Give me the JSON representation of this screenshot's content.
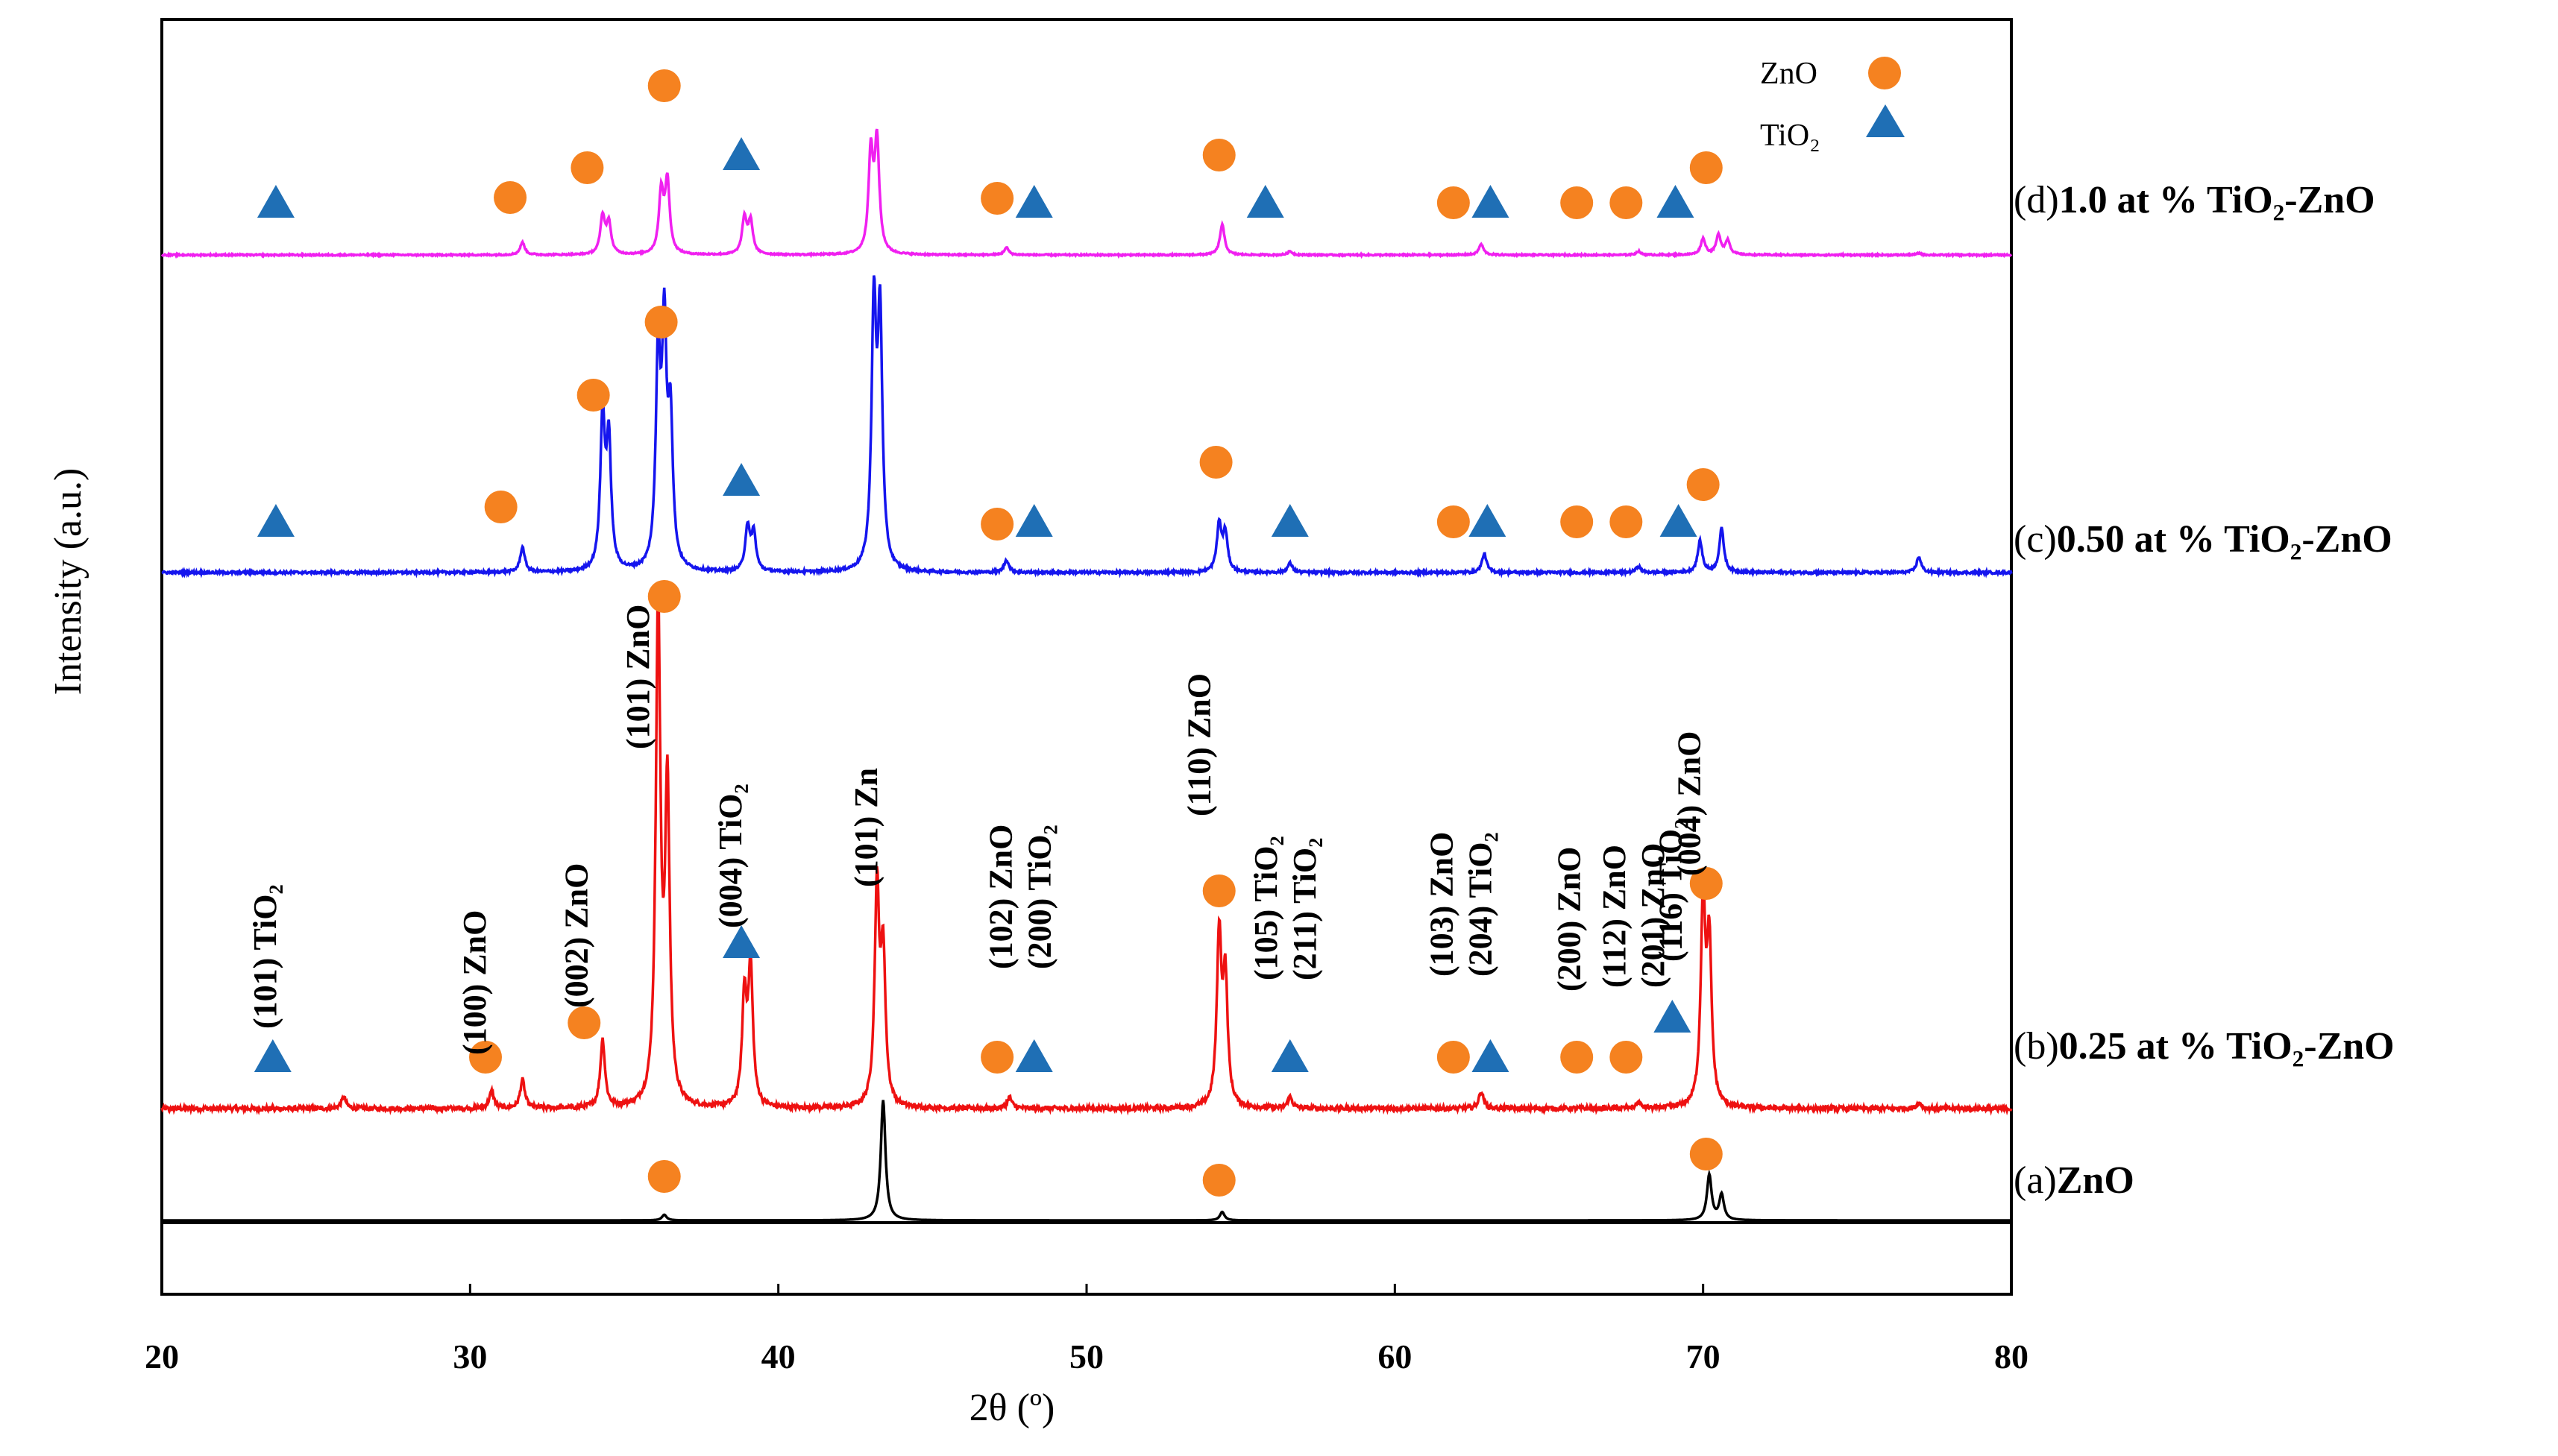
{
  "chart_data": {
    "type": "line",
    "xlabel": "2θ (º)",
    "ylabel": "Intensity (a.u.)",
    "xlim": [
      20,
      80
    ],
    "x_ticks": [
      "20",
      "30",
      "40",
      "50",
      "60",
      "70",
      "80"
    ],
    "grid": false,
    "legend": {
      "placement": "top-right",
      "entries": [
        {
          "label": "ZnO",
          "marker": "circle",
          "color": "#F58220"
        },
        {
          "label": "TiO₂",
          "marker": "triangle",
          "color": "#1F6FB5"
        }
      ]
    },
    "series": [
      {
        "id": "a",
        "prefix": "(a)",
        "name": "ZnO",
        "color": "#000000",
        "peaks": [
          [
            36.3,
            0.04
          ],
          [
            43.4,
            0.85
          ],
          [
            54.4,
            0.06
          ],
          [
            70.2,
            0.32
          ],
          [
            70.6,
            0.18
          ]
        ],
        "markers": [
          {
            "x": 36.3,
            "kind": "ZnO"
          },
          {
            "x": 54.3,
            "kind": "ZnO"
          },
          {
            "x": 70.1,
            "kind": "ZnO"
          }
        ]
      },
      {
        "id": "b",
        "prefix": "(b)",
        "name": "0.25 at % TiO₂-ZnO",
        "color": "#EE1111",
        "peaks": [
          [
            25.9,
            0.02
          ],
          [
            30.7,
            0.03
          ],
          [
            31.7,
            0.05
          ],
          [
            34.3,
            0.12
          ],
          [
            36.1,
            0.88
          ],
          [
            36.4,
            0.55
          ],
          [
            38.9,
            0.19
          ],
          [
            39.1,
            0.24
          ],
          [
            43.2,
            0.38
          ],
          [
            43.4,
            0.26
          ],
          [
            47.5,
            0.02
          ],
          [
            54.3,
            0.3
          ],
          [
            54.5,
            0.22
          ],
          [
            56.6,
            0.02
          ],
          [
            62.8,
            0.03
          ],
          [
            67.9,
            0.01
          ],
          [
            70.0,
            0.36
          ],
          [
            70.2,
            0.28
          ],
          [
            77.0,
            0.01
          ]
        ],
        "markers": [
          {
            "x": 23.6,
            "kind": "TiO2"
          },
          {
            "x": 30.5,
            "kind": "ZnO"
          },
          {
            "x": 33.7,
            "kind": "ZnO"
          },
          {
            "x": 36.3,
            "kind": "ZnO"
          },
          {
            "x": 38.8,
            "kind": "TiO2"
          },
          {
            "x": 47.1,
            "kind": "ZnO"
          },
          {
            "x": 48.3,
            "kind": "TiO2"
          },
          {
            "x": 54.3,
            "kind": "ZnO"
          },
          {
            "x": 56.6,
            "kind": "TiO2"
          },
          {
            "x": 61.9,
            "kind": "ZnO"
          },
          {
            "x": 63.1,
            "kind": "TiO2"
          },
          {
            "x": 65.9,
            "kind": "ZnO"
          },
          {
            "x": 67.5,
            "kind": "ZnO"
          },
          {
            "x": 69.0,
            "kind": "TiO2"
          },
          {
            "x": 70.1,
            "kind": "ZnO"
          }
        ],
        "peak_labels": [
          {
            "x": 23.7,
            "lines": [
              "(101) TiO₂"
            ]
          },
          {
            "x": 30.5,
            "lines": [
              "(100) ZnO"
            ]
          },
          {
            "x": 33.8,
            "lines": [
              "(002) ZnO"
            ]
          },
          {
            "x": 35.8,
            "lines": [
              "(101) ZnO"
            ]
          },
          {
            "x": 38.8,
            "lines": [
              "(004) TiO₂"
            ]
          },
          {
            "x": 43.2,
            "lines": [
              "(101) Zn"
            ]
          },
          {
            "x": 48.2,
            "lines": [
              "(102) ZnO",
              "(200) TiO₂"
            ]
          },
          {
            "x": 54.0,
            "lines": [
              "(110) ZnO"
            ]
          },
          {
            "x": 56.8,
            "lines": [
              "(105) TiO₂",
              "(211) TiO₂"
            ]
          },
          {
            "x": 62.5,
            "lines": [
              "(103) ZnO",
              "(204) TiO₂"
            ]
          },
          {
            "x": 66.0,
            "lines": [
              "(200) ZnO"
            ]
          },
          {
            "x": 68.1,
            "lines": [
              "(112) ZnO",
              "(201) ZnO"
            ]
          },
          {
            "x": 69.3,
            "lines": [
              "(116) TiO₂"
            ]
          },
          {
            "x": 69.9,
            "lines": [
              "(004) ZnO"
            ]
          }
        ]
      },
      {
        "id": "c",
        "prefix": "(c)",
        "name": "0.50 at % TiO₂-ZnO",
        "color": "#1515EE",
        "peaks": [
          [
            31.7,
            0.08
          ],
          [
            34.3,
            0.48
          ],
          [
            34.5,
            0.4
          ],
          [
            36.1,
            0.65
          ],
          [
            36.3,
            0.72
          ],
          [
            36.5,
            0.45
          ],
          [
            39.0,
            0.14
          ],
          [
            39.2,
            0.12
          ],
          [
            43.1,
            0.82
          ],
          [
            43.3,
            0.78
          ],
          [
            47.4,
            0.04
          ],
          [
            54.3,
            0.15
          ],
          [
            54.5,
            0.12
          ],
          [
            56.6,
            0.03
          ],
          [
            62.9,
            0.06
          ],
          [
            67.9,
            0.02
          ],
          [
            69.9,
            0.1
          ],
          [
            70.6,
            0.14
          ],
          [
            77.0,
            0.05
          ]
        ],
        "markers": [
          {
            "x": 23.7,
            "kind": "TiO2"
          },
          {
            "x": 31.0,
            "kind": "ZnO"
          },
          {
            "x": 34.0,
            "kind": "ZnO"
          },
          {
            "x": 36.2,
            "kind": "ZnO"
          },
          {
            "x": 38.8,
            "kind": "TiO2"
          },
          {
            "x": 47.1,
            "kind": "ZnO"
          },
          {
            "x": 48.3,
            "kind": "TiO2"
          },
          {
            "x": 54.2,
            "kind": "ZnO"
          },
          {
            "x": 56.6,
            "kind": "TiO2"
          },
          {
            "x": 61.9,
            "kind": "ZnO"
          },
          {
            "x": 63.0,
            "kind": "TiO2"
          },
          {
            "x": 65.9,
            "kind": "ZnO"
          },
          {
            "x": 67.5,
            "kind": "ZnO"
          },
          {
            "x": 69.2,
            "kind": "TiO2"
          },
          {
            "x": 70.0,
            "kind": "ZnO"
          }
        ]
      },
      {
        "id": "d",
        "prefix": "(d)",
        "name": "1.0 at % TiO₂-ZnO",
        "color": "#F020F0",
        "peaks": [
          [
            31.7,
            0.07
          ],
          [
            34.3,
            0.21
          ],
          [
            34.5,
            0.17
          ],
          [
            36.2,
            0.34
          ],
          [
            36.4,
            0.4
          ],
          [
            38.9,
            0.2
          ],
          [
            39.1,
            0.18
          ],
          [
            43.0,
            0.55
          ],
          [
            43.2,
            0.61
          ],
          [
            47.4,
            0.04
          ],
          [
            54.4,
            0.17
          ],
          [
            56.6,
            0.02
          ],
          [
            62.8,
            0.06
          ],
          [
            67.9,
            0.02
          ],
          [
            70.0,
            0.09
          ],
          [
            70.5,
            0.11
          ],
          [
            70.8,
            0.08
          ],
          [
            77.0,
            0.01
          ]
        ],
        "markers": [
          {
            "x": 23.7,
            "kind": "TiO2"
          },
          {
            "x": 31.3,
            "kind": "ZnO"
          },
          {
            "x": 33.8,
            "kind": "ZnO"
          },
          {
            "x": 36.3,
            "kind": "ZnO"
          },
          {
            "x": 38.8,
            "kind": "TiO2"
          },
          {
            "x": 47.1,
            "kind": "ZnO"
          },
          {
            "x": 48.3,
            "kind": "TiO2"
          },
          {
            "x": 54.3,
            "kind": "ZnO"
          },
          {
            "x": 55.8,
            "kind": "TiO2"
          },
          {
            "x": 61.9,
            "kind": "ZnO"
          },
          {
            "x": 63.1,
            "kind": "TiO2"
          },
          {
            "x": 65.9,
            "kind": "ZnO"
          },
          {
            "x": 67.5,
            "kind": "ZnO"
          },
          {
            "x": 69.1,
            "kind": "TiO2"
          },
          {
            "x": 70.1,
            "kind": "ZnO"
          }
        ]
      }
    ]
  }
}
